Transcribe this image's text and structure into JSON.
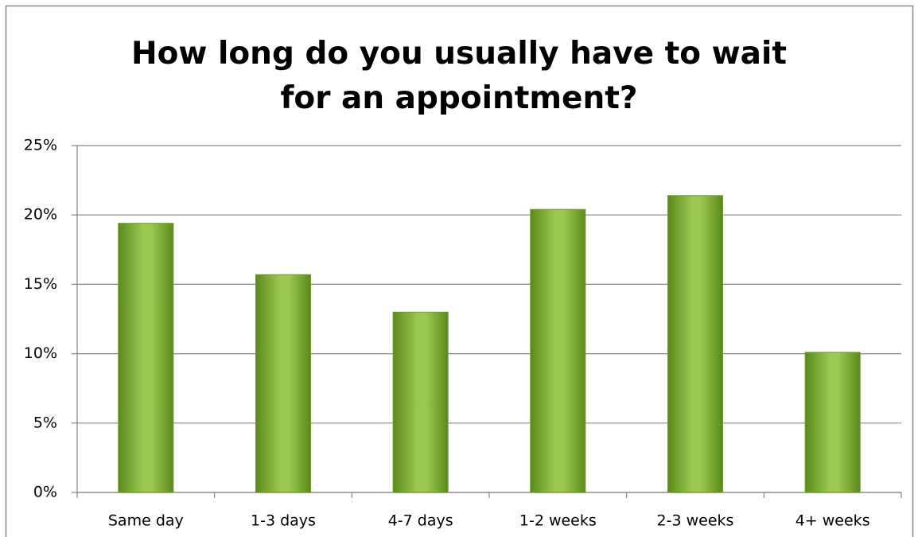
{
  "chart_data": {
    "type": "bar",
    "title": "How long do you usually have to wait for an appointment?",
    "categories": [
      "Same day",
      "1-3 days",
      "4-7 days",
      "1-2 weeks",
      "2-3 weeks",
      "4+ weeks"
    ],
    "values": [
      19.4,
      15.7,
      13.0,
      20.4,
      21.4,
      10.1
    ],
    "color": "#9bc850",
    "ylim": [
      0,
      25
    ],
    "yticks": [
      {
        "value": 0,
        "label": "0%"
      },
      {
        "value": 5,
        "label": "5%"
      },
      {
        "value": 10,
        "label": "10%"
      },
      {
        "value": 15,
        "label": "15%"
      },
      {
        "value": 20,
        "label": "20%"
      },
      {
        "value": 25,
        "label": "25%"
      }
    ],
    "grid": true
  }
}
